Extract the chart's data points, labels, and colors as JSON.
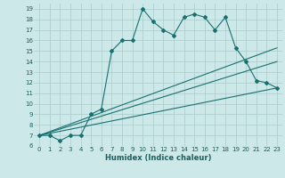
{
  "xlabel": "Humidex (Indice chaleur)",
  "bg_color": "#cce8e8",
  "grid_color": "#aacccc",
  "line_color": "#1a7070",
  "xlim": [
    -0.5,
    23.5
  ],
  "ylim": [
    6,
    19.5
  ],
  "xticks": [
    0,
    1,
    2,
    3,
    4,
    5,
    6,
    7,
    8,
    9,
    10,
    11,
    12,
    13,
    14,
    15,
    16,
    17,
    18,
    19,
    20,
    21,
    22,
    23
  ],
  "yticks": [
    6,
    7,
    8,
    9,
    10,
    11,
    12,
    13,
    14,
    15,
    16,
    17,
    18,
    19
  ],
  "series": [
    {
      "x": [
        0,
        1,
        2,
        3,
        4,
        5,
        6,
        7,
        8,
        9,
        10,
        11,
        12,
        13,
        14,
        15,
        16,
        17,
        18,
        19,
        20,
        21,
        22,
        23
      ],
      "y": [
        7,
        7,
        6.5,
        7,
        7,
        9,
        9.5,
        15,
        16,
        16,
        19,
        17.8,
        17,
        16.5,
        18.2,
        18.5,
        18.2,
        17,
        18.2,
        15.3,
        14,
        12.2,
        12,
        11.5
      ],
      "marker": true
    },
    {
      "x": [
        0,
        23
      ],
      "y": [
        7,
        15.3
      ],
      "marker": false
    },
    {
      "x": [
        0,
        23
      ],
      "y": [
        7,
        14.0
      ],
      "marker": false
    },
    {
      "x": [
        0,
        23
      ],
      "y": [
        7,
        11.5
      ],
      "marker": false
    }
  ]
}
